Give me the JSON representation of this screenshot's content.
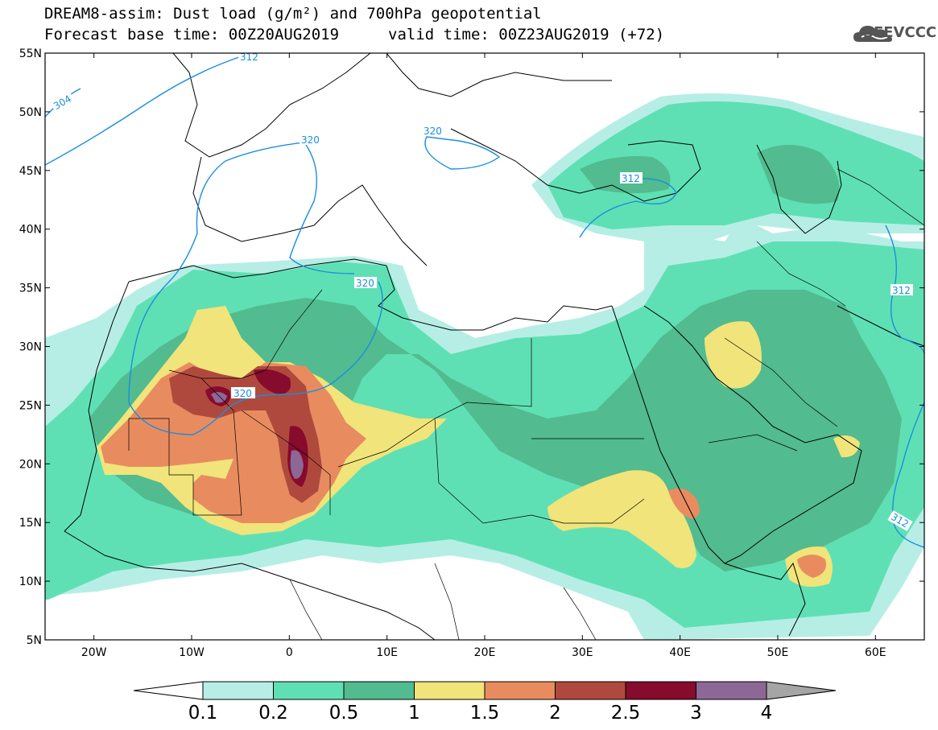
{
  "title": {
    "line1": "DREAM8-assim: Dust load (g/m²) and 700hPa geopotential",
    "line2": "Forecast base time: 00Z20AUG2019",
    "valid": "valid time: 00Z23AUG2019 (+72)"
  },
  "logo": {
    "text": "SEEVCCC",
    "icon": "cloud-logo-icon"
  },
  "map": {
    "lat_labels": [
      "55N",
      "50N",
      "45N",
      "40N",
      "35N",
      "30N",
      "25N",
      "20N",
      "15N",
      "10N",
      "5N"
    ],
    "lon_labels": [
      "20W",
      "10W",
      "0",
      "10E",
      "20E",
      "30E",
      "40E",
      "50E",
      "60E"
    ],
    "contour_labels": [
      "312",
      "304",
      "320",
      "320",
      "320",
      "312",
      "320",
      "312",
      "312"
    ],
    "colors": {
      "c01": "#b6eee5",
      "c02": "#5fe0b4",
      "c05": "#52bb8f",
      "c1": "#f1e47a",
      "c15": "#e88c60",
      "c2": "#b0493d",
      "c25": "#860b2c",
      "c3": "#8d6795",
      "c4": "#a5a5a5",
      "contour": "#1a8ee0"
    }
  },
  "colorbar": {
    "labels": [
      "0.1",
      "0.2",
      "0.5",
      "1",
      "1.5",
      "2",
      "2.5",
      "3",
      "4"
    ],
    "colors": [
      "#b6eee5",
      "#5fe0b4",
      "#52bb8f",
      "#f1e47a",
      "#e88c60",
      "#b0493d",
      "#860b2c",
      "#8d6795"
    ]
  }
}
